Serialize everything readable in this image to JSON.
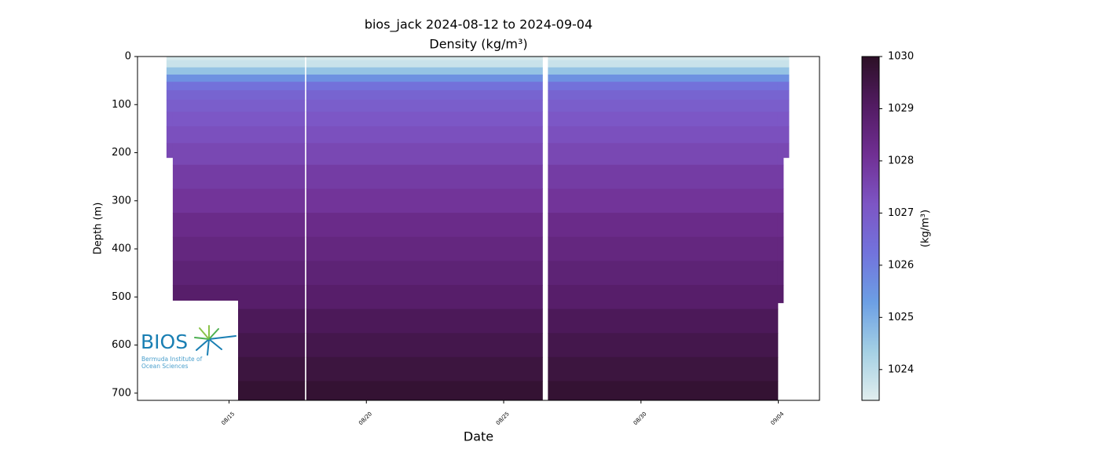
{
  "chart_data": {
    "type": "heatmap",
    "title": "bios_jack 2024-08-12 to 2024-09-04",
    "subtitle": "Density (kg/m³)",
    "x_label": "Date",
    "y_label": "Depth (m)",
    "xlim": [
      "2024-08-11T16:00",
      "2024-09-05T12:00"
    ],
    "xticks": [
      {
        "value": "2024-08-15T00:00",
        "label": "08/15"
      },
      {
        "value": "2024-08-20T00:00",
        "label": "08/20"
      },
      {
        "value": "2024-08-25T00:00",
        "label": "08/25"
      },
      {
        "value": "2024-08-30T00:00",
        "label": "08/30"
      },
      {
        "value": "2024-09-04T00:00",
        "label": "09/04"
      }
    ],
    "ylim": [
      0,
      715
    ],
    "yticks": [
      0,
      100,
      200,
      300,
      400,
      500,
      600,
      700
    ],
    "segments": [
      {
        "start": "2024-08-12T17:20",
        "end": "2024-08-12T22:50",
        "max_depth": 210
      },
      {
        "start": "2024-08-12T22:50",
        "end": "2024-08-17T18:00",
        "max_depth": 715
      },
      {
        "start": "2024-08-17T19:30",
        "end": "2024-08-26T09:50",
        "max_depth": 715
      },
      {
        "start": "2024-08-26T14:40",
        "end": "2024-09-03T23:30",
        "max_depth": 715
      },
      {
        "start": "2024-09-03T23:30",
        "end": "2024-09-04T04:20",
        "max_depth": 512
      },
      {
        "start": "2024-09-04T04:20",
        "end": "2024-09-04T09:10",
        "max_depth": 210
      }
    ],
    "profile": {
      "depth": [
        0,
        15,
        30,
        45,
        60,
        80,
        100,
        130,
        160,
        200,
        250,
        300,
        350,
        400,
        450,
        500,
        550,
        600,
        650,
        700
      ],
      "density": [
        1023.6,
        1023.8,
        1024.6,
        1025.6,
        1026.3,
        1026.7,
        1026.9,
        1027.1,
        1027.3,
        1027.5,
        1027.8,
        1028.0,
        1028.3,
        1028.5,
        1028.7,
        1028.9,
        1029.2,
        1029.4,
        1029.6,
        1029.8
      ]
    },
    "colormap": [
      "#e1eeee",
      "#a4d0e4",
      "#6c9fe4",
      "#7273dc",
      "#7d55c4",
      "#702f93",
      "#521b62",
      "#2c1026"
    ],
    "colorbar": {
      "label": "(kg/m³)",
      "clim": [
        1023.41,
        1030
      ],
      "ticks": [
        1024,
        1025,
        1026,
        1027,
        1028,
        1029,
        1030
      ]
    },
    "logo": {
      "name": "BIOS",
      "line1": "Bermuda Institute of",
      "line2": "Ocean Sciences"
    }
  }
}
